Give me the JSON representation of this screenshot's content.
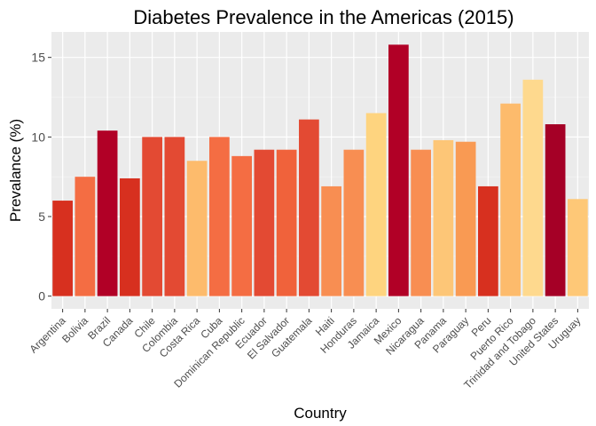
{
  "chart_data": {
    "type": "bar",
    "title": "Diabetes Prevalence in the Americas (2015)",
    "xlabel": "Country",
    "ylabel": "Prevalance (%)",
    "ylim": [
      -0.8,
      16.6
    ],
    "yticks": [
      0,
      5,
      10,
      15
    ],
    "grid": true,
    "legend": "none",
    "categories": [
      "Argentina",
      "Bolivia",
      "Brazil",
      "Canada",
      "Chile",
      "Colombia",
      "Costa Rica",
      "Cuba",
      "Dominican Republic",
      "Ecuador",
      "El Salvador",
      "Guatemala",
      "Haiti",
      "Honduras",
      "Jamaica",
      "Mexico",
      "Nicaragua",
      "Panama",
      "Paraguay",
      "Peru",
      "Puerto Rico",
      "Trinidad and Tobago",
      "United States",
      "Uruguay"
    ],
    "values": [
      6.0,
      7.5,
      10.4,
      7.4,
      10.0,
      10.0,
      8.5,
      10.0,
      8.8,
      9.2,
      9.2,
      11.1,
      6.9,
      9.2,
      11.5,
      15.8,
      9.2,
      9.8,
      9.7,
      6.9,
      12.1,
      13.6,
      10.8,
      6.1
    ],
    "colors": [
      "#d7301f",
      "#f46d43",
      "#b10026",
      "#d7301f",
      "#e34a33",
      "#e34a33",
      "#fdbb6c",
      "#f46d43",
      "#f46d43",
      "#e34a33",
      "#f0623b",
      "#e34a33",
      "#f88e52",
      "#f88e52",
      "#fed47f",
      "#b10026",
      "#f88e52",
      "#fdc677",
      "#f99a53",
      "#d7301f",
      "#fdbb6c",
      "#fed98e",
      "#a50026",
      "#fec877"
    ]
  }
}
